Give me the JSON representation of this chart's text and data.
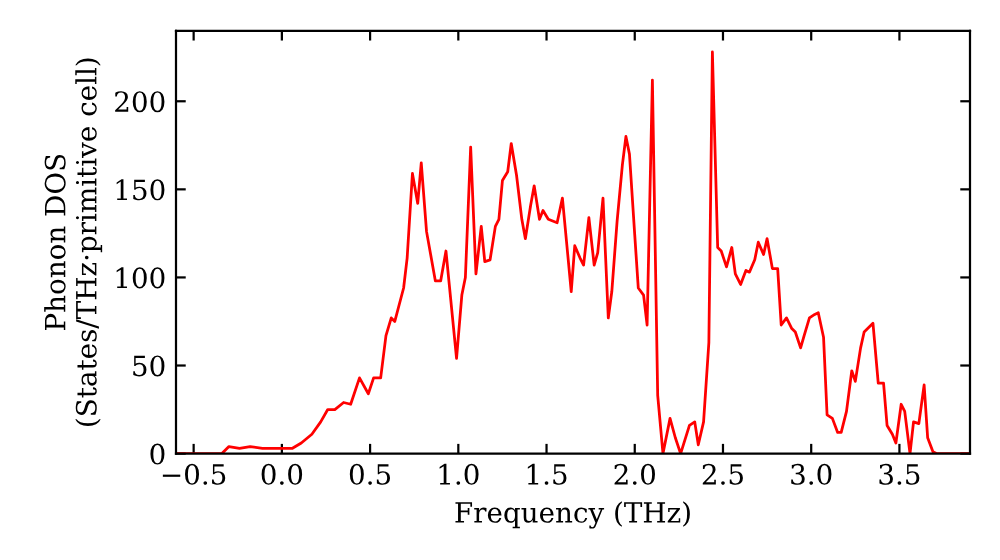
{
  "chart_data": {
    "type": "line",
    "xlabel": "Frequency (THz)",
    "ylabel": "Phonon DOS\n(States/THz·primitive cell)",
    "xlim": [
      -0.6,
      3.9
    ],
    "ylim": [
      0,
      240
    ],
    "xticks": [
      {
        "value": -0.5,
        "label": "−0.5"
      },
      {
        "value": 0,
        "label": "0.0"
      },
      0.5,
      {
        "value": 1,
        "label": "1.0"
      },
      1.5,
      {
        "value": 2,
        "label": "2.0"
      },
      2.5,
      {
        "value": 3,
        "label": "3.0"
      },
      3.5
    ],
    "yticks": [
      0,
      50,
      100,
      150,
      200
    ],
    "grid": false,
    "legend": false,
    "x": [
      -0.59,
      -0.34,
      -0.3,
      -0.24,
      -0.18,
      -0.11,
      0.06,
      0.11,
      0.17,
      0.22,
      0.26,
      0.3,
      0.35,
      0.39,
      0.44,
      0.49,
      0.52,
      0.56,
      0.59,
      0.62,
      0.64,
      0.69,
      0.71,
      0.74,
      0.77,
      0.79,
      0.82,
      0.87,
      0.9,
      0.93,
      0.99,
      1.02,
      1.04,
      1.07,
      1.1,
      1.13,
      1.15,
      1.18,
      1.21,
      1.23,
      1.25,
      1.28,
      1.3,
      1.33,
      1.36,
      1.38,
      1.41,
      1.43,
      1.46,
      1.48,
      1.51,
      1.56,
      1.59,
      1.64,
      1.66,
      1.69,
      1.71,
      1.74,
      1.77,
      1.79,
      1.82,
      1.85,
      1.87,
      1.9,
      1.93,
      1.95,
      1.97,
      2.0,
      2.02,
      2.05,
      2.07,
      2.1,
      2.13,
      2.16,
      2.2,
      2.23,
      2.26,
      2.31,
      2.34,
      2.36,
      2.39,
      2.42,
      2.44,
      2.47,
      2.49,
      2.52,
      2.55,
      2.57,
      2.6,
      2.63,
      2.65,
      2.68,
      2.7,
      2.73,
      2.75,
      2.78,
      2.81,
      2.83,
      2.86,
      2.89,
      2.91,
      2.94,
      2.96,
      2.99,
      3.02,
      3.04,
      3.07,
      3.09,
      3.12,
      3.15,
      3.17,
      3.2,
      3.23,
      3.25,
      3.28,
      3.3,
      3.33,
      3.35,
      3.38,
      3.41,
      3.43,
      3.46,
      3.48,
      3.51,
      3.53,
      3.56,
      3.58,
      3.61,
      3.64,
      3.66,
      3.69,
      3.71,
      3.9
    ],
    "series": [
      {
        "color": "#ff0000",
        "line_style": "solid",
        "marker": "none",
        "values": [
          0,
          0,
          4,
          3,
          4,
          3,
          3,
          6,
          11,
          18,
          25,
          25,
          29,
          28,
          43,
          34,
          43,
          43,
          67,
          77,
          75,
          94,
          111,
          159,
          142,
          165,
          126,
          98,
          98,
          115,
          54,
          90,
          100,
          174,
          102,
          129,
          109,
          110,
          129,
          133,
          155,
          160,
          176,
          158,
          133,
          122,
          141,
          152,
          133,
          138,
          133,
          131,
          145,
          92,
          118,
          111,
          107,
          134,
          107,
          114,
          145,
          77,
          92,
          132,
          164,
          180,
          170,
          124,
          94,
          90,
          73,
          212,
          33,
          0,
          20,
          9,
          0,
          16,
          18,
          5,
          18,
          63,
          228,
          117,
          115,
          106,
          117,
          102,
          96,
          104,
          103,
          110,
          120,
          113,
          122,
          105,
          105,
          73,
          77,
          71,
          69,
          60,
          67,
          77,
          79,
          80,
          66,
          22,
          20,
          12,
          12,
          24,
          47,
          41,
          60,
          69,
          72,
          74,
          40,
          40,
          16,
          11,
          6,
          28,
          24,
          0,
          18,
          17,
          39,
          9,
          1,
          0,
          0
        ]
      }
    ]
  }
}
